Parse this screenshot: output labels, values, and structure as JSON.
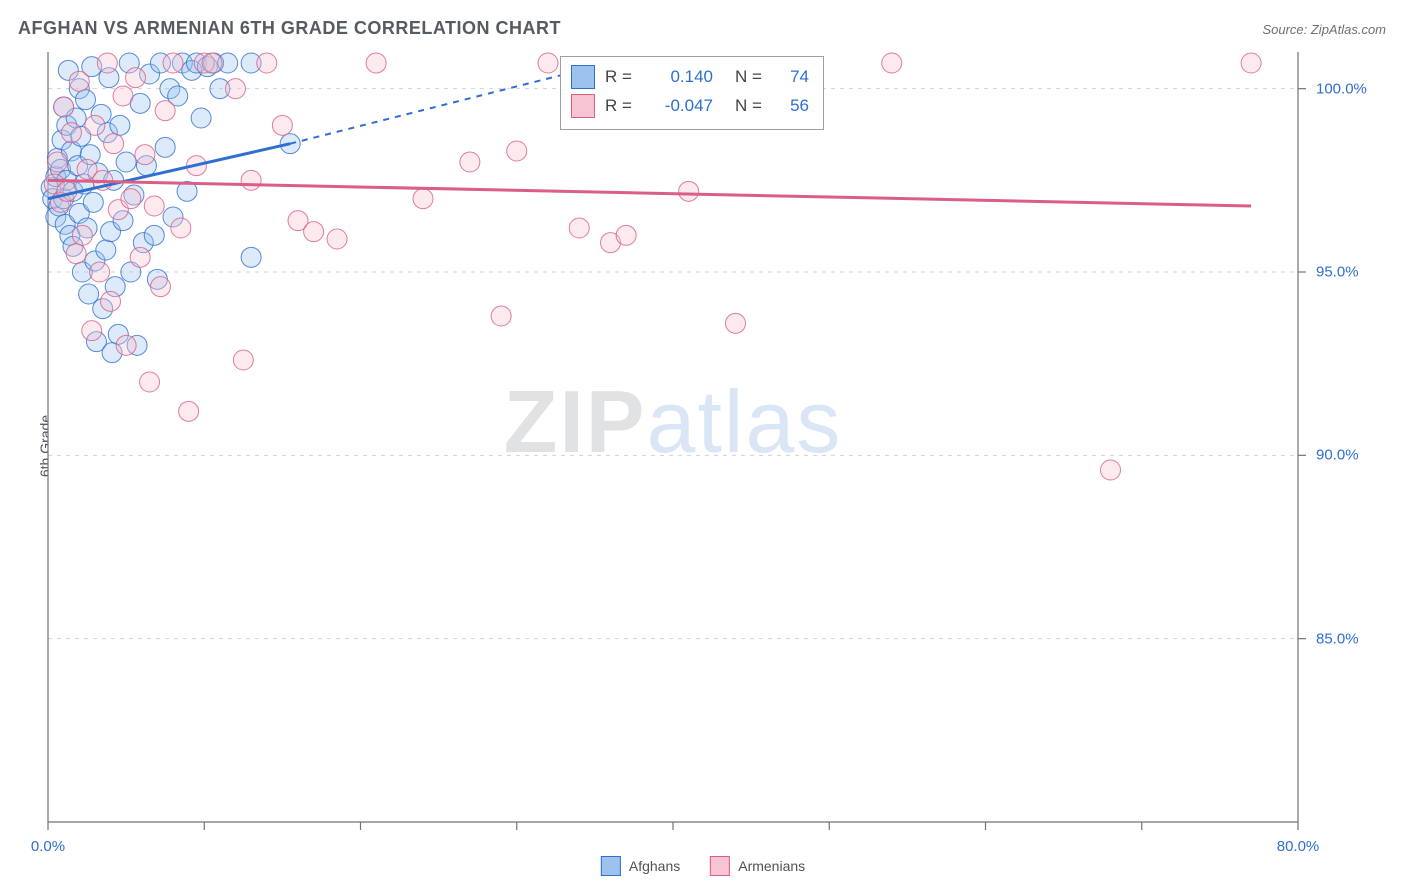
{
  "chart": {
    "type": "scatter",
    "title": "AFGHAN VS ARMENIAN 6TH GRADE CORRELATION CHART",
    "source_label": "Source: ZipAtlas.com",
    "ylabel": "6th Grade",
    "watermark_zip": "ZIP",
    "watermark_atlas": "atlas",
    "background_color": "#ffffff",
    "grid_color_dashed": "#cfd3d7",
    "axis_line_color": "#6f7479",
    "tick_label_color": "#2f6fd0",
    "title_color": "#555b61",
    "title_fontsize": 18,
    "label_fontsize": 14,
    "tick_fontsize": 15,
    "xlim": [
      0,
      80
    ],
    "ylim": [
      80,
      101
    ],
    "xticks_major": [
      0,
      10,
      20,
      30,
      40,
      50,
      60,
      70,
      80
    ],
    "xticks_labeled": [
      0,
      80
    ],
    "xtick_labels": [
      "0.0%",
      "80.0%"
    ],
    "yticks_major": [
      85,
      90,
      95,
      100
    ],
    "ytick_labels": [
      "85.0%",
      "90.0%",
      "95.0%",
      "100.0%"
    ],
    "marker_radius": 10,
    "marker_fill_opacity": 0.35,
    "marker_stroke_opacity": 0.8,
    "marker_stroke_width": 1,
    "trend_line_width": 3,
    "trend_dash": "6,6",
    "series_legend_bottom": [
      {
        "label": "Afghans",
        "fill": "#9cc3ee",
        "stroke": "#2f6fd0"
      },
      {
        "label": "Armenians",
        "fill": "#f6c4d2",
        "stroke": "#da5e86"
      }
    ],
    "correlation_legend": {
      "rows": [
        {
          "swatch_fill": "#9cc3ee",
          "swatch_stroke": "#2f6fd0",
          "r_label": "R =",
          "r_value": "0.140",
          "n_label": "N =",
          "n_value": "74"
        },
        {
          "swatch_fill": "#f6c4d2",
          "swatch_stroke": "#da5e86",
          "r_label": "R =",
          "r_value": "-0.047",
          "n_label": "N =",
          "n_value": "56"
        }
      ]
    },
    "series": [
      {
        "name": "Afghans",
        "fill": "#9cc3ee",
        "stroke": "#2f6fd0",
        "trend_solid": {
          "x1": 0,
          "y1": 97.0,
          "x2": 15.5,
          "y2": 98.5
        },
        "trend_dashed": {
          "x1": 15.5,
          "y1": 98.5,
          "x2": 35,
          "y2": 100.6
        },
        "points": [
          [
            0.2,
            97.3
          ],
          [
            0.3,
            97.0
          ],
          [
            0.5,
            96.5
          ],
          [
            0.5,
            97.6
          ],
          [
            0.6,
            98.1
          ],
          [
            0.7,
            96.8
          ],
          [
            0.8,
            97.8
          ],
          [
            0.9,
            98.6
          ],
          [
            1.0,
            97.0
          ],
          [
            1.0,
            99.5
          ],
          [
            1.1,
            96.3
          ],
          [
            1.2,
            99.0
          ],
          [
            1.2,
            97.5
          ],
          [
            1.3,
            100.5
          ],
          [
            1.4,
            96.0
          ],
          [
            1.5,
            98.3
          ],
          [
            1.6,
            97.2
          ],
          [
            1.6,
            95.7
          ],
          [
            1.8,
            99.2
          ],
          [
            1.9,
            97.9
          ],
          [
            2.0,
            100.0
          ],
          [
            2.0,
            96.6
          ],
          [
            2.1,
            98.7
          ],
          [
            2.2,
            95.0
          ],
          [
            2.3,
            97.4
          ],
          [
            2.4,
            99.7
          ],
          [
            2.5,
            96.2
          ],
          [
            2.6,
            94.4
          ],
          [
            2.7,
            98.2
          ],
          [
            2.8,
            100.6
          ],
          [
            2.9,
            96.9
          ],
          [
            3.0,
            95.3
          ],
          [
            3.1,
            93.1
          ],
          [
            3.2,
            97.7
          ],
          [
            3.4,
            99.3
          ],
          [
            3.5,
            94.0
          ],
          [
            3.7,
            95.6
          ],
          [
            3.8,
            98.8
          ],
          [
            3.9,
            100.3
          ],
          [
            4.0,
            96.1
          ],
          [
            4.1,
            92.8
          ],
          [
            4.2,
            97.5
          ],
          [
            4.3,
            94.6
          ],
          [
            4.5,
            93.3
          ],
          [
            4.6,
            99.0
          ],
          [
            4.8,
            96.4
          ],
          [
            5.0,
            98.0
          ],
          [
            5.2,
            100.7
          ],
          [
            5.3,
            95.0
          ],
          [
            5.5,
            97.1
          ],
          [
            5.7,
            93.0
          ],
          [
            5.9,
            99.6
          ],
          [
            6.1,
            95.8
          ],
          [
            6.3,
            97.9
          ],
          [
            6.5,
            100.4
          ],
          [
            6.8,
            96.0
          ],
          [
            7.0,
            94.8
          ],
          [
            7.2,
            100.7
          ],
          [
            7.5,
            98.4
          ],
          [
            7.8,
            100.0
          ],
          [
            8.0,
            96.5
          ],
          [
            8.3,
            99.8
          ],
          [
            8.6,
            100.7
          ],
          [
            8.9,
            97.2
          ],
          [
            9.2,
            100.5
          ],
          [
            9.5,
            100.7
          ],
          [
            9.8,
            99.2
          ],
          [
            10.2,
            100.6
          ],
          [
            10.6,
            100.7
          ],
          [
            11.0,
            100.0
          ],
          [
            11.5,
            100.7
          ],
          [
            13.0,
            100.7
          ],
          [
            13.0,
            95.4
          ],
          [
            15.5,
            98.5
          ]
        ]
      },
      {
        "name": "Armenians",
        "fill": "#f6c4d2",
        "stroke": "#da5e86",
        "trend_solid": {
          "x1": 0,
          "y1": 97.5,
          "x2": 77,
          "y2": 96.8
        },
        "trend_dashed": null,
        "points": [
          [
            0.4,
            97.4
          ],
          [
            0.6,
            98.0
          ],
          [
            0.8,
            96.9
          ],
          [
            1.0,
            99.5
          ],
          [
            1.2,
            97.2
          ],
          [
            1.5,
            98.8
          ],
          [
            1.8,
            95.5
          ],
          [
            2.0,
            100.2
          ],
          [
            2.2,
            96.0
          ],
          [
            2.5,
            97.8
          ],
          [
            2.8,
            93.4
          ],
          [
            3.0,
            99.0
          ],
          [
            3.3,
            95.0
          ],
          [
            3.5,
            97.5
          ],
          [
            3.8,
            100.7
          ],
          [
            4.0,
            94.2
          ],
          [
            4.2,
            98.5
          ],
          [
            4.5,
            96.7
          ],
          [
            4.8,
            99.8
          ],
          [
            5.0,
            93.0
          ],
          [
            5.3,
            97.0
          ],
          [
            5.6,
            100.3
          ],
          [
            5.9,
            95.4
          ],
          [
            6.2,
            98.2
          ],
          [
            6.5,
            92.0
          ],
          [
            6.8,
            96.8
          ],
          [
            7.2,
            94.6
          ],
          [
            7.5,
            99.4
          ],
          [
            8.0,
            100.7
          ],
          [
            8.5,
            96.2
          ],
          [
            9.0,
            91.2
          ],
          [
            9.5,
            97.9
          ],
          [
            10.0,
            100.7
          ],
          [
            10.5,
            100.7
          ],
          [
            12.0,
            100.0
          ],
          [
            12.5,
            92.6
          ],
          [
            13.0,
            97.5
          ],
          [
            14.0,
            100.7
          ],
          [
            15.0,
            99.0
          ],
          [
            16.0,
            96.4
          ],
          [
            17.0,
            96.1
          ],
          [
            18.5,
            95.9
          ],
          [
            21.0,
            100.7
          ],
          [
            24.0,
            97.0
          ],
          [
            27.0,
            98.0
          ],
          [
            29.0,
            93.8
          ],
          [
            30.0,
            98.3
          ],
          [
            32.0,
            100.7
          ],
          [
            34.0,
            96.2
          ],
          [
            36.0,
            95.8
          ],
          [
            37.0,
            96.0
          ],
          [
            41.0,
            97.2
          ],
          [
            44.0,
            93.6
          ],
          [
            54.0,
            100.7
          ],
          [
            68.0,
            89.6
          ],
          [
            77.0,
            100.7
          ]
        ]
      }
    ]
  }
}
